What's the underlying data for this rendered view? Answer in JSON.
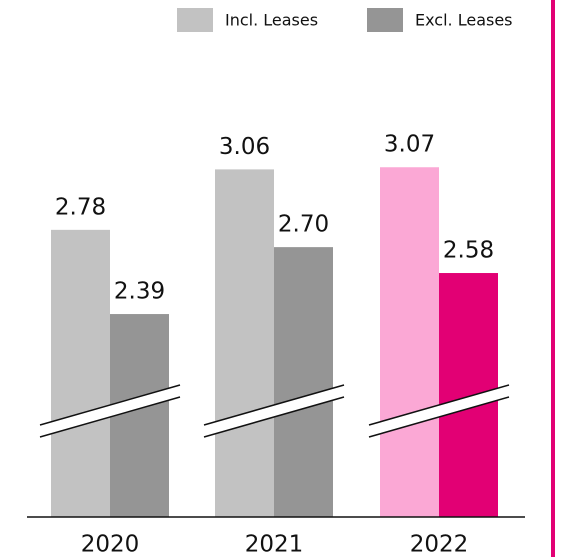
{
  "chart_data": {
    "type": "bar",
    "categories": [
      "2020",
      "2021",
      "2022"
    ],
    "series": [
      {
        "name": "Incl. Leases",
        "color": "#c2c2c2",
        "colors": [
          "#c2c2c2",
          "#c2c2c2",
          "#fba8d5"
        ],
        "values": [
          2.78,
          3.06,
          3.07
        ],
        "value_labels": [
          "2.78",
          "3.06",
          "3.07"
        ]
      },
      {
        "name": "Excl. Leases",
        "color": "#959595",
        "colors": [
          "#959595",
          "#959595",
          "#e20074"
        ],
        "values": [
          2.39,
          2.7,
          2.58
        ],
        "value_labels": [
          "2.39",
          "2.70",
          "2.58"
        ]
      }
    ],
    "ylim": [
      1.45,
      3.4
    ],
    "grid": false,
    "legend": "top-right"
  }
}
